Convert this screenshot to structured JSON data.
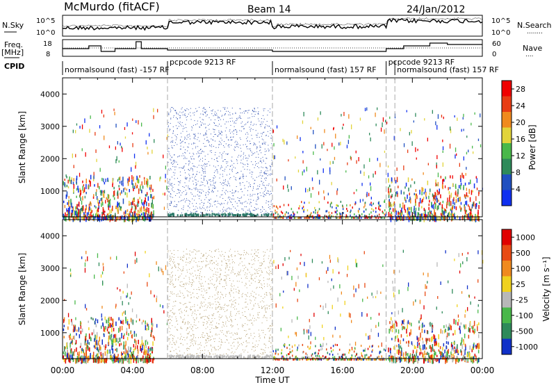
{
  "header": {
    "station": "McMurdo (fitACF)",
    "beam": "Beam 14",
    "date": "24/Jan/2012"
  },
  "left_labels": {
    "nsky": "N.Sky",
    "freq_line1": "Freq.",
    "freq_line2": "[MHz]",
    "cpid": "CPID"
  },
  "right_labels": {
    "nsearch": "N.Search",
    "nsearch_marker": "........",
    "nave": "Nave",
    "nave_marker": "...."
  },
  "noise_axis": {
    "top": "10^5",
    "bottom": "10^0"
  },
  "freq_axis": {
    "top": "18",
    "bottom": "8"
  },
  "nave_axis": {
    "top": "60",
    "bottom": "0"
  },
  "cpid_segments": [
    {
      "label": "normalsound (fast) -157 RF",
      "start_hour": 0.0,
      "end_hour": 6.0
    },
    {
      "label": "pcpcode 9213 RF",
      "start_hour": 6.0,
      "end_hour": 12.0
    },
    {
      "label": "normalsound (fast) 157 RF",
      "start_hour": 12.0,
      "end_hour": 18.5
    },
    {
      "label": "pcpcode 9213 RF",
      "start_hour": 18.5,
      "end_hour": 18.5
    },
    {
      "label": "normalsound (fast) 157 RF",
      "start_hour": 19.0,
      "end_hour": 24.0
    }
  ],
  "chart_data": [
    {
      "type": "heatmap",
      "title": "",
      "xlabel": "Time UT",
      "ylabel": "Slant Range [km]",
      "x_ticks": [
        "00:00",
        "04:00",
        "08:00",
        "12:00",
        "16:00",
        "20:00",
        "00:00"
      ],
      "y_ticks": [
        "1000",
        "2000",
        "3000",
        "4000"
      ],
      "ylim": [
        200,
        4500
      ],
      "colorbar_label": "Power [dB]",
      "colorbar_ticks": [
        "4",
        "8",
        "12",
        "16",
        "20",
        "24",
        "28"
      ],
      "colorbar_range": [
        0,
        30
      ],
      "colors": [
        "#1030f0",
        "#2050c0",
        "#2e8a5a",
        "#49b84a",
        "#e2d43a",
        "#f08a1e",
        "#e83c14",
        "#f00000"
      ]
    },
    {
      "type": "heatmap",
      "title": "",
      "xlabel": "Time UT",
      "ylabel": "Slant Range [km]",
      "x_ticks": [
        "00:00",
        "04:00",
        "08:00",
        "12:00",
        "16:00",
        "20:00",
        "00:00"
      ],
      "y_ticks": [
        "1000",
        "2000",
        "3000",
        "4000"
      ],
      "ylim": [
        200,
        4500
      ],
      "colorbar_label": "Velocity [m s⁻¹]",
      "colorbar_ticks": [
        "1000",
        "500",
        "100",
        "25",
        "-25",
        "-100",
        "-500",
        "-1000"
      ],
      "colorbar_range": [
        -1000,
        1000
      ],
      "colors": [
        "#1030c8",
        "#2e8a5a",
        "#49b84a",
        "#b8b8b8",
        "#f0d21e",
        "#f08a1e",
        "#e84a14",
        "#e00000"
      ]
    }
  ]
}
